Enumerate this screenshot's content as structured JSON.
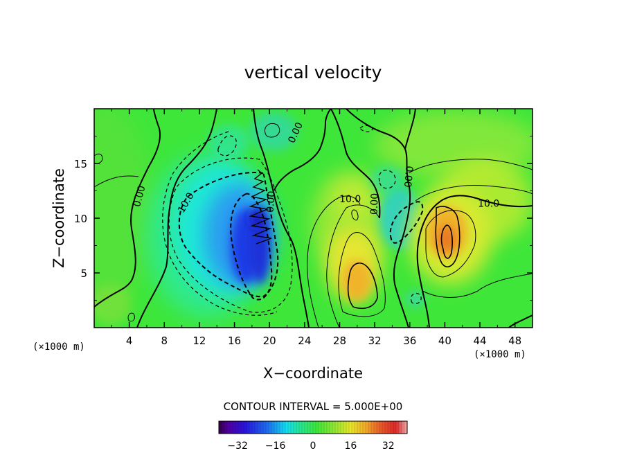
{
  "chart_data": {
    "type": "heatmap",
    "title": "vertical velocity",
    "xlabel": "X−coordinate",
    "ylabel": "Z−coordinate",
    "x_unit_left": "(×1000 m)",
    "x_unit_right": "(×1000 m)",
    "xlim": [
      0,
      50
    ],
    "ylim": [
      0,
      20
    ],
    "x_ticks": [
      4,
      8,
      12,
      16,
      20,
      24,
      28,
      32,
      36,
      40,
      44,
      48
    ],
    "y_ticks": [
      5,
      10,
      15
    ],
    "contour_interval_text": "CONTOUR INTERVAL = 5.000E+00",
    "colorbar": {
      "range": [
        -40,
        40
      ],
      "ticks": [
        -32,
        -16,
        0,
        16,
        32
      ],
      "tick_labels": [
        "−32",
        "−16",
        "0",
        "16",
        "32"
      ]
    },
    "contour_labels": [
      {
        "text": "0.00",
        "x": 5.2,
        "z": 12.0,
        "angle": -75
      },
      {
        "text": "10.0",
        "x": 10.5,
        "z": 11.4,
        "angle": -60
      },
      {
        "text": "0.00",
        "x": 20.2,
        "z": 11.5,
        "angle": -85
      },
      {
        "text": "0.00",
        "x": 23.0,
        "z": 17.8,
        "angle": -65
      },
      {
        "text": "10.0",
        "x": 29.2,
        "z": 11.7,
        "angle": 0
      },
      {
        "text": "0.00",
        "x": 32.0,
        "z": 11.3,
        "angle": -88
      },
      {
        "text": "0.00",
        "x": 35.8,
        "z": 13.8,
        "angle": 95
      },
      {
        "text": "10.0",
        "x": 45.0,
        "z": 11.3,
        "angle": 0
      }
    ],
    "features": [
      {
        "kind": "downdraft",
        "x": 18.0,
        "z": 7.5,
        "w": -35
      },
      {
        "kind": "downdraft",
        "x": 13.0,
        "z": 9.5,
        "w": -20
      },
      {
        "kind": "downdraft",
        "x": 35.0,
        "z": 9.0,
        "w": -12
      },
      {
        "kind": "updraft",
        "x": 30.0,
        "z": 4.0,
        "w": 25
      },
      {
        "kind": "updraft",
        "x": 40.0,
        "z": 8.5,
        "w": 28
      },
      {
        "kind": "updraft",
        "x": 28.8,
        "z": 10.5,
        "w": 12
      }
    ]
  }
}
